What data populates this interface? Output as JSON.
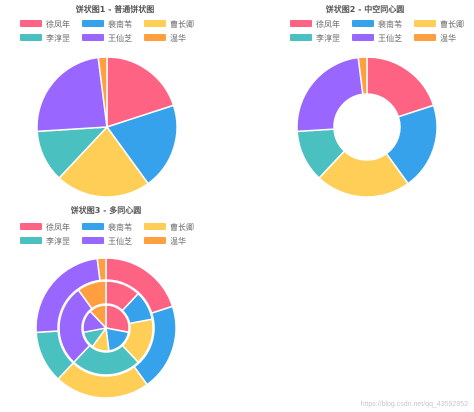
{
  "colors": [
    "#ff6384",
    "#36a2eb",
    "#ffce56",
    "#4bc0c0",
    "#9966ff",
    "#ff9f40"
  ],
  "watermark": "https://blog.csdn.net/qq_43592852",
  "chart_data": [
    {
      "type": "pie",
      "title": "饼状图1 - 普通饼状图",
      "labels": [
        "徐凤年",
        "裴南苇",
        "曹长卿",
        "李淳罡",
        "王仙芝",
        "温华"
      ],
      "series": [
        {
          "values": [
            20,
            20,
            22,
            12,
            24,
            2
          ]
        }
      ]
    },
    {
      "type": "pie",
      "subtype": "doughnut",
      "title": "饼状图2 - 中空同心圆",
      "labels": [
        "徐凤年",
        "裴南苇",
        "曹长卿",
        "李淳罡",
        "王仙芝",
        "温华"
      ],
      "series": [
        {
          "values": [
            20,
            20,
            22,
            12,
            24,
            2
          ]
        }
      ]
    },
    {
      "type": "pie",
      "subtype": "multi-ring",
      "title": "饼状图3 - 多同心圆",
      "labels": [
        "徐凤年",
        "裴南苇",
        "曹长卿",
        "李淳罡",
        "王仙芝",
        "温华"
      ],
      "series": [
        {
          "values": [
            20,
            20,
            22,
            12,
            24,
            2
          ]
        },
        {
          "values": [
            12,
            10,
            16,
            24,
            28,
            10
          ]
        },
        {
          "values": [
            28,
            20,
            12,
            12,
            16,
            12
          ]
        }
      ]
    }
  ]
}
